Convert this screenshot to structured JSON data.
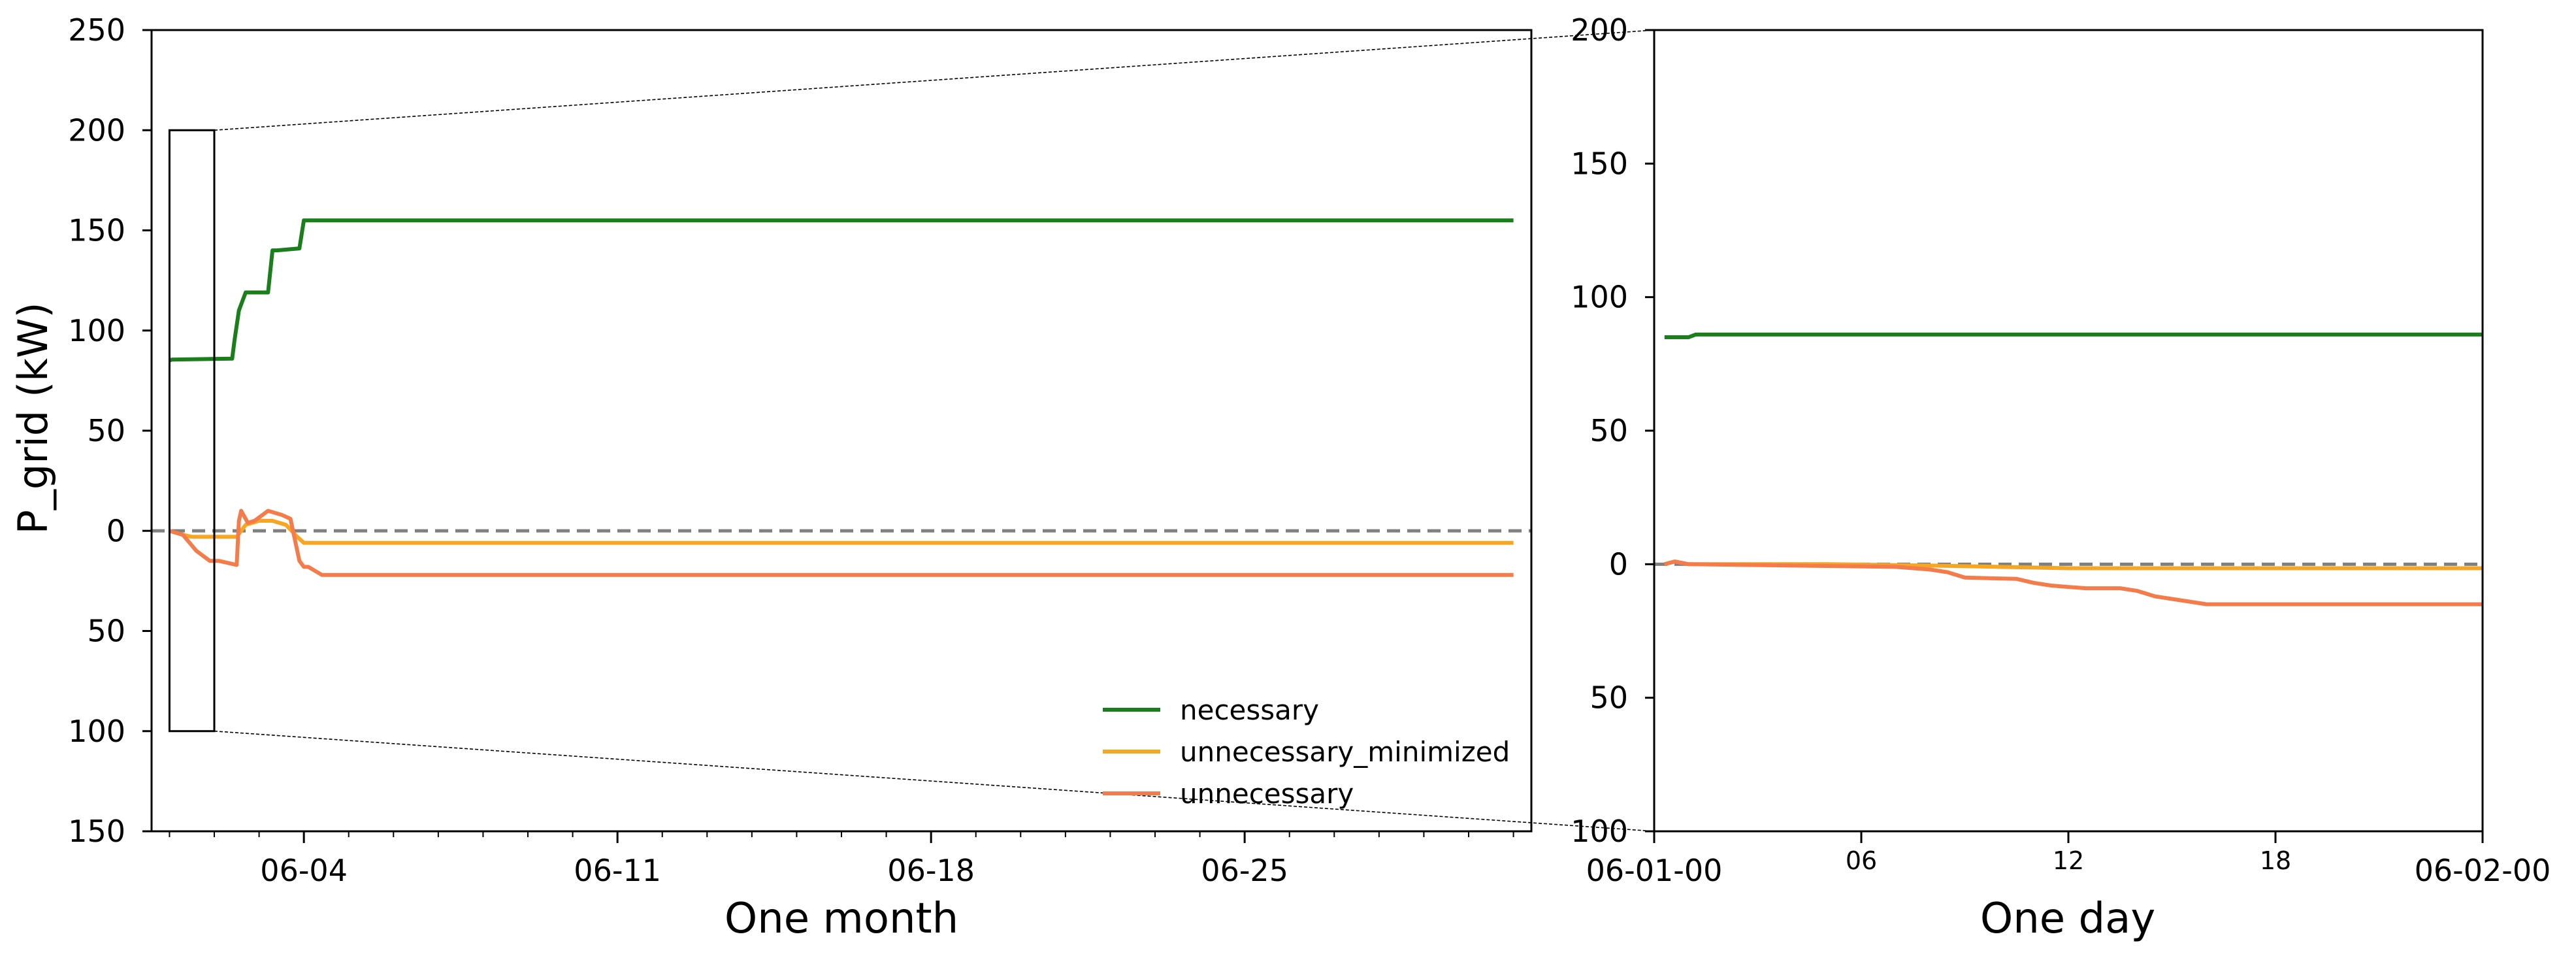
{
  "chart_data": [
    {
      "type": "line",
      "panel": "main",
      "xlabel": "One month",
      "ylabel": "P_grid (kW)",
      "x_unit": "days since 2024-06-01",
      "xlim": [
        -0.4,
        30.4
      ],
      "ylim": [
        -150,
        250
      ],
      "yticks": [
        250,
        200,
        150,
        100,
        50,
        0,
        -50,
        -100,
        -150
      ],
      "ytick_labels": [
        "250",
        "200",
        "150",
        "100",
        "50",
        "0",
        "50",
        "100",
        "150"
      ],
      "xticks": [
        {
          "x": 3,
          "label": "06-04"
        },
        {
          "x": 10,
          "label": "06-11"
        },
        {
          "x": 17,
          "label": "06-18"
        },
        {
          "x": 24,
          "label": "06-25"
        }
      ],
      "zoom_box": {
        "x": [
          0,
          1
        ],
        "y": [
          -100,
          200
        ]
      },
      "reference_line": {
        "y": 0,
        "style": "dashed",
        "color": "#808080"
      },
      "legend": {
        "placement": "lower-right",
        "entries": [
          "necessary",
          "unnecessary_minimized",
          "unnecessary"
        ]
      },
      "series": [
        {
          "name": "necessary",
          "color": "#1a7f1a",
          "x": [
            0,
            0.05,
            1.4,
            1.45,
            1.55,
            1.7,
            2.2,
            2.3,
            2.4,
            2.9,
            2.95,
            3.0,
            30
          ],
          "y": [
            85,
            85.5,
            86,
            95,
            110,
            119,
            119,
            140,
            140,
            141,
            148,
            155,
            155
          ]
        },
        {
          "name": "unnecessary_minimized",
          "color": "#f5a623",
          "x": [
            0,
            0.3,
            0.5,
            1.0,
            1.5,
            1.7,
            2.0,
            2.3,
            2.6,
            2.85,
            3.0,
            30
          ],
          "y": [
            0,
            -2,
            -3,
            -3,
            -3,
            3,
            5,
            5,
            3,
            -3,
            -6,
            -6
          ]
        },
        {
          "name": "unnecessary",
          "color": "#f47c4a",
          "x": [
            0,
            0.3,
            0.6,
            0.9,
            1.1,
            1.5,
            1.55,
            1.6,
            1.75,
            1.9,
            2.2,
            2.5,
            2.7,
            2.9,
            3.0,
            3.1,
            3.4,
            30
          ],
          "y": [
            0,
            -2,
            -10,
            -15,
            -15,
            -17,
            5,
            10,
            4,
            5,
            10,
            8,
            6,
            -15,
            -18,
            -18,
            -22,
            -22
          ]
        }
      ]
    },
    {
      "type": "line",
      "panel": "inset",
      "xlabel": "One day",
      "x_unit": "hours",
      "xlim": [
        0,
        24
      ],
      "ylim": [
        -100,
        200
      ],
      "yticks": [
        200,
        150,
        100,
        50,
        0,
        -50,
        -100
      ],
      "ytick_labels": [
        "200",
        "150",
        "100",
        "50",
        "0",
        "50",
        "100"
      ],
      "xticks": [
        {
          "x": 0,
          "label": "06-01-00",
          "size": "large"
        },
        {
          "x": 6,
          "label": "06",
          "size": "small"
        },
        {
          "x": 12,
          "label": "12",
          "size": "small"
        },
        {
          "x": 18,
          "label": "18",
          "size": "small"
        },
        {
          "x": 24,
          "label": "06-02-00",
          "size": "large"
        }
      ],
      "reference_line": {
        "y": 0,
        "style": "dashed",
        "color": "#808080"
      },
      "series": [
        {
          "name": "necessary",
          "color": "#1a7f1a",
          "x": [
            0.3,
            1.0,
            1.2,
            24
          ],
          "y": [
            85,
            85,
            86,
            86
          ]
        },
        {
          "name": "unnecessary_minimized",
          "color": "#f5a623",
          "x": [
            0.3,
            0.6,
            1.0,
            5,
            8,
            10,
            12,
            24
          ],
          "y": [
            0,
            1,
            0,
            0,
            -0.5,
            -1,
            -1.5,
            -1.5
          ]
        },
        {
          "name": "unnecessary",
          "color": "#f47c4a",
          "x": [
            0.3,
            0.6,
            1.0,
            7.0,
            8.0,
            8.5,
            9.0,
            10.5,
            11.0,
            11.5,
            12.0,
            12.5,
            13.0,
            13.5,
            14.0,
            14.5,
            15.0,
            15.5,
            16.0,
            24
          ],
          "y": [
            0,
            1,
            0,
            -1,
            -2,
            -3,
            -5,
            -5.5,
            -7,
            -8,
            -8.5,
            -9,
            -9,
            -9,
            -10,
            -12,
            -13,
            -14,
            -15,
            -15
          ]
        }
      ]
    }
  ]
}
